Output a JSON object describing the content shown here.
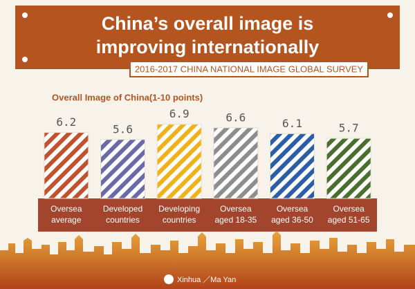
{
  "chart_data": {
    "type": "bar",
    "title": [
      "China’s overall image is",
      "improving internationally"
    ],
    "subtitle": "2016-2017 CHINA NATIONAL IMAGE GLOBAL SURVEY",
    "chart_title": "Overall Image of China(1-10 points)",
    "categories": [
      [
        "Oversea",
        "average"
      ],
      [
        "Developed",
        "countries"
      ],
      [
        "Developing",
        "countries"
      ],
      [
        "Oversea",
        "aged 18-35"
      ],
      [
        "Oversea",
        "aged 36-50"
      ],
      [
        "Oversea",
        "aged 51-65"
      ]
    ],
    "values": [
      6.2,
      5.6,
      6.9,
      6.6,
      6.1,
      5.7
    ],
    "colors": [
      "#c0532d",
      "#6b6aa8",
      "#f0b21a",
      "#8d8d8d",
      "#2b5ea8",
      "#4a6e2e"
    ],
    "ylim": [
      0.6,
      7.0
    ],
    "credit": "Xinhua ／Ma Yan"
  }
}
